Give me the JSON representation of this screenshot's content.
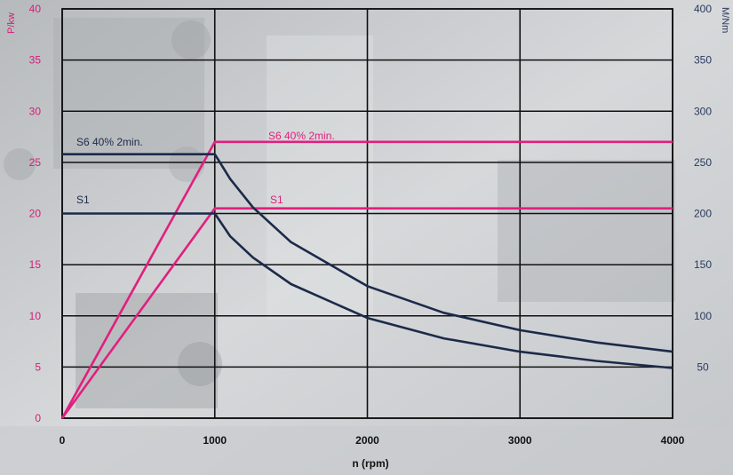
{
  "chart_data": {
    "type": "line",
    "xlabel": "n (rpm)",
    "ylabel_left": "P/kw",
    "ylabel_right": "M/Nm",
    "xlim": [
      0,
      4000
    ],
    "ylim_left": [
      0,
      40
    ],
    "ylim_right": [
      0,
      400
    ],
    "x_ticks": [
      "0",
      "1000",
      "2000",
      "3000",
      "4000"
    ],
    "y_left_ticks": [
      "0",
      "5",
      "10",
      "15",
      "20",
      "25",
      "30",
      "35",
      "40"
    ],
    "y_right_ticks": [
      "50",
      "100",
      "150",
      "200",
      "250",
      "300",
      "350",
      "400"
    ],
    "grid": true,
    "colors": {
      "power": "#e0207f",
      "torque": "#1c2a4a"
    },
    "series": [
      {
        "name": "S6 40% 2min.",
        "quantity": "power",
        "axis": "left",
        "x": [
          0,
          1000,
          4000
        ],
        "y": [
          0,
          27,
          27
        ]
      },
      {
        "name": "S1",
        "quantity": "power",
        "axis": "left",
        "x": [
          0,
          1000,
          4000
        ],
        "y": [
          0,
          20.5,
          20.5
        ]
      },
      {
        "name": "S6 40% 2min.",
        "quantity": "torque",
        "axis": "right",
        "x": [
          0,
          1000,
          1100,
          1250,
          1500,
          2000,
          2500,
          3000,
          3500,
          4000
        ],
        "y": [
          258,
          258,
          234,
          206,
          172,
          129,
          103,
          86,
          74,
          65
        ]
      },
      {
        "name": "S1",
        "quantity": "torque",
        "axis": "right",
        "x": [
          0,
          1000,
          1100,
          1250,
          1500,
          2000,
          2500,
          3000,
          3500,
          4000
        ],
        "y": [
          200,
          200,
          178,
          157,
          131,
          98,
          78,
          65,
          56,
          49
        ]
      }
    ],
    "annotations": [
      {
        "text": "S6 40% 2min.",
        "series": "torque-s6"
      },
      {
        "text": "S1",
        "series": "torque-s1"
      },
      {
        "text": "S6 40% 2min.",
        "series": "power-s6"
      },
      {
        "text": "S1",
        "series": "power-s1"
      }
    ]
  }
}
